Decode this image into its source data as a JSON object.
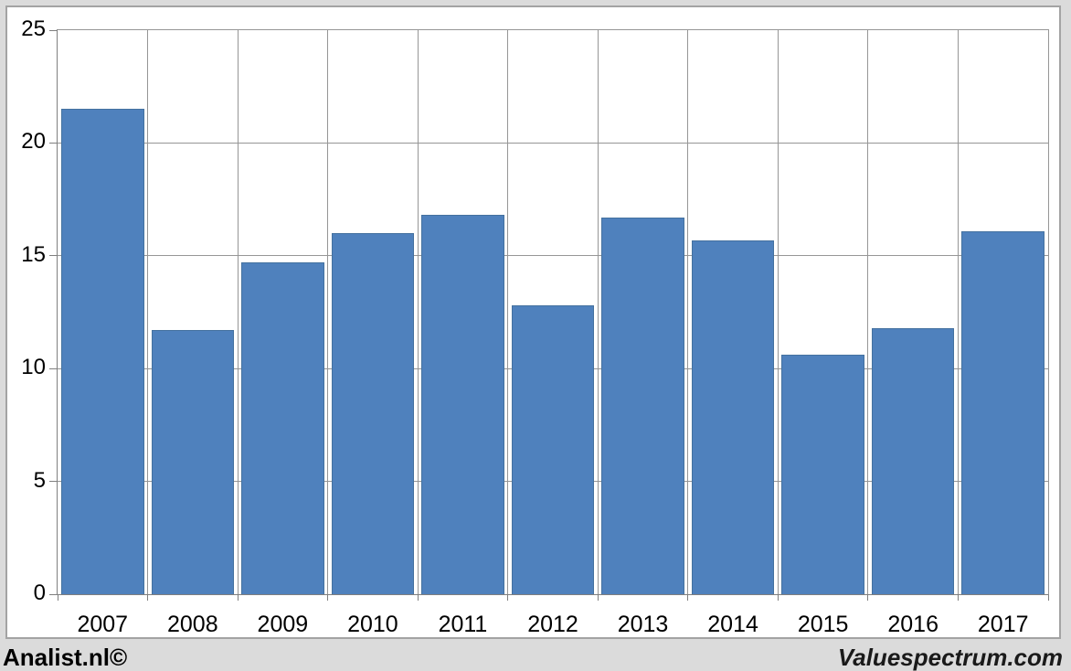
{
  "window": {
    "background_color": "#dbdbdb",
    "card_background": "#ffffff",
    "card_border_color": "#a3a3a3"
  },
  "chart_data": {
    "type": "bar",
    "title": "",
    "xlabel": "",
    "ylabel": "",
    "categories": [
      "2007",
      "2008",
      "2009",
      "2010",
      "2011",
      "2012",
      "2013",
      "2014",
      "2015",
      "2016",
      "2017"
    ],
    "values": [
      21.5,
      11.7,
      14.7,
      16.0,
      16.8,
      12.8,
      16.7,
      15.7,
      10.6,
      11.8,
      16.1
    ],
    "ylim": [
      0,
      25
    ],
    "y_ticks": [
      0,
      5,
      10,
      15,
      20,
      25
    ],
    "grid": true,
    "legend_position": "none",
    "bar_color": "#4f81bd",
    "bar_border_color": "#44719f",
    "gridline_color": "#969696",
    "axis_color": "#7f7f7f",
    "tick_label_color": "#000000"
  },
  "footer": {
    "left_text": "Analist.nl©",
    "right_text": "Valuespectrum.com"
  }
}
